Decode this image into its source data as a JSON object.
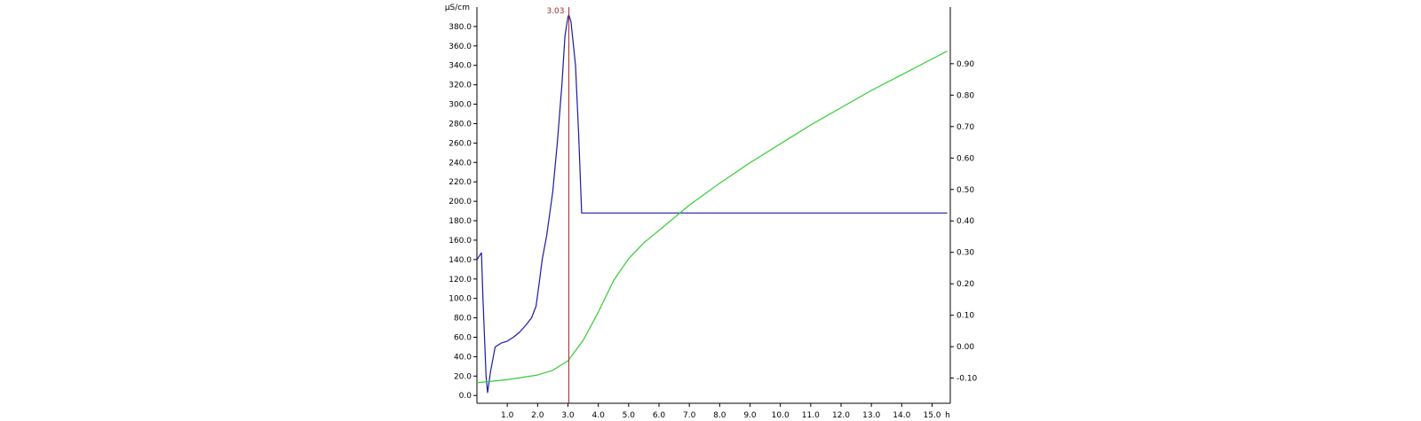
{
  "chart_data": {
    "type": "line",
    "xlabel": "h",
    "ylabel": "µS/cm",
    "x_ticks": [
      "1.0",
      "2.0",
      "3.0",
      "4.0",
      "5.0",
      "6.0",
      "7.0",
      "8.0",
      "9.0",
      "10.0",
      "11.0",
      "12.0",
      "13.0",
      "14.0",
      "15.0"
    ],
    "x_tick_values": [
      1,
      2,
      3,
      4,
      5,
      6,
      7,
      8,
      9,
      10,
      11,
      12,
      13,
      14,
      15
    ],
    "xlim": [
      0,
      15.6
    ],
    "y_left_ticks": [
      "0.0",
      "20.0",
      "40.0",
      "60.0",
      "80.0",
      "100.0",
      "120.0",
      "140.0",
      "160.0",
      "180.0",
      "200.0",
      "220.0",
      "240.0",
      "260.0",
      "280.0",
      "300.0",
      "320.0",
      "340.0",
      "360.0",
      "380.0"
    ],
    "y_left_tick_values": [
      0,
      20,
      40,
      60,
      80,
      100,
      120,
      140,
      160,
      180,
      200,
      220,
      240,
      260,
      280,
      300,
      320,
      340,
      360,
      380
    ],
    "ylim_left": [
      -8,
      400
    ],
    "y_right_ticks": [
      "-0.10",
      "0.00",
      "0.10",
      "0.20",
      "0.30",
      "0.40",
      "0.50",
      "0.60",
      "0.70",
      "0.80",
      "0.90"
    ],
    "y_right_tick_values": [
      -0.1,
      0.0,
      0.1,
      0.2,
      0.3,
      0.4,
      0.5,
      0.6,
      0.7,
      0.8,
      0.9
    ],
    "ylim_right": [
      -0.18,
      1.08
    ],
    "marker": {
      "x": 3.03,
      "label": "3.03",
      "color": "#a52a2a"
    },
    "series": [
      {
        "axis": "left",
        "color": "#1a1aa0",
        "points": [
          [
            0,
            140
          ],
          [
            0.15,
            147
          ],
          [
            0.2,
            100
          ],
          [
            0.3,
            20
          ],
          [
            0.35,
            3
          ],
          [
            0.45,
            25
          ],
          [
            0.6,
            50
          ],
          [
            0.8,
            54
          ],
          [
            1.0,
            56
          ],
          [
            1.2,
            60
          ],
          [
            1.4,
            65
          ],
          [
            1.6,
            72
          ],
          [
            1.8,
            80
          ],
          [
            1.95,
            92
          ],
          [
            2.05,
            115
          ],
          [
            2.15,
            140
          ],
          [
            2.3,
            165
          ],
          [
            2.5,
            210
          ],
          [
            2.65,
            260
          ],
          [
            2.8,
            320
          ],
          [
            2.9,
            370
          ],
          [
            3.0,
            390
          ],
          [
            3.03,
            392
          ],
          [
            3.1,
            385
          ],
          [
            3.25,
            340
          ],
          [
            3.35,
            270
          ],
          [
            3.45,
            188
          ],
          [
            15.5,
            188
          ]
        ]
      },
      {
        "axis": "right",
        "color": "#33cc33",
        "points": [
          [
            0,
            -0.115
          ],
          [
            1.0,
            -0.105
          ],
          [
            2.0,
            -0.09
          ],
          [
            2.5,
            -0.075
          ],
          [
            3.0,
            -0.045
          ],
          [
            3.5,
            0.02
          ],
          [
            4.0,
            0.11
          ],
          [
            4.5,
            0.21
          ],
          [
            5.0,
            0.28
          ],
          [
            5.5,
            0.33
          ],
          [
            6.0,
            0.37
          ],
          [
            6.5,
            0.41
          ],
          [
            7.0,
            0.45
          ],
          [
            8.0,
            0.52
          ],
          [
            9.0,
            0.585
          ],
          [
            10.0,
            0.645
          ],
          [
            11.0,
            0.705
          ],
          [
            12.0,
            0.76
          ],
          [
            13.0,
            0.815
          ],
          [
            14.0,
            0.865
          ],
          [
            15.0,
            0.915
          ],
          [
            15.5,
            0.94
          ]
        ]
      }
    ]
  }
}
